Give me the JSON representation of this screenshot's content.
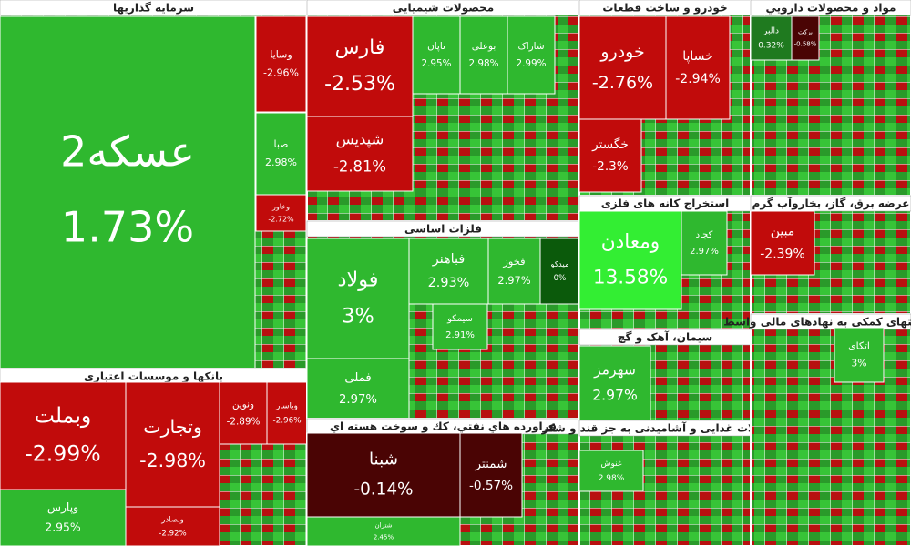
{
  "chart_data": {
    "type": "treemap",
    "sectors": [
      {
        "title": "سرمایه گذاریها",
        "tiles": [
          {
            "name": "عسکه2",
            "value": 1.73,
            "label": "1.73%"
          },
          {
            "name": "وسایا",
            "value": -2.96,
            "label": "-2.96%"
          },
          {
            "name": "صبا",
            "value": 2.98,
            "label": "2.98%"
          },
          {
            "name": "وخاور",
            "value": -2.72,
            "label": "-2.72%"
          }
        ]
      },
      {
        "title": "بانکها و موسسات اعتباری",
        "tiles": [
          {
            "name": "وبملت",
            "value": -2.99,
            "label": "-2.99%"
          },
          {
            "name": "وتجارت",
            "value": -2.98,
            "label": "-2.98%"
          },
          {
            "name": "وپارس",
            "value": 2.95,
            "label": "2.95%"
          },
          {
            "name": "وبصادر",
            "value": -2.92,
            "label": "-2.92%"
          },
          {
            "name": "ونوین",
            "value": -2.89,
            "label": "-2.89%"
          },
          {
            "name": "وپاسار",
            "value": -2.96,
            "label": "-2.96%"
          }
        ]
      },
      {
        "title": "محصولات شیمیایی",
        "tiles": [
          {
            "name": "فارس",
            "value": -2.53,
            "label": "-2.53%"
          },
          {
            "name": "شپدیس",
            "value": -2.81,
            "label": "-2.81%"
          },
          {
            "name": "تاپان",
            "value": 2.95,
            "label": "2.95%"
          },
          {
            "name": "بوعلی",
            "value": 2.98,
            "label": "2.98%"
          },
          {
            "name": "شاراک",
            "value": 2.99,
            "label": "2.99%"
          }
        ]
      },
      {
        "title": "فلزات اساسی",
        "tiles": [
          {
            "name": "فولاد",
            "value": 3,
            "label": "3%"
          },
          {
            "name": "فملی",
            "value": 2.97,
            "label": "2.97%"
          },
          {
            "name": "فباهنر",
            "value": 2.93,
            "label": "2.93%"
          },
          {
            "name": "فخوز",
            "value": 2.97,
            "label": "2.97%"
          },
          {
            "name": "میدکو",
            "value": 0,
            "label": "0%"
          },
          {
            "name": "سیمکو",
            "value": 2.91,
            "label": "2.91%"
          }
        ]
      },
      {
        "title": "فراورده هاي نفتي، كك و سوخت هسته اي",
        "tiles": [
          {
            "name": "شبنا",
            "value": -0.14,
            "label": "-0.14%"
          },
          {
            "name": "شمنتر",
            "value": -0.57,
            "label": "-0.57%"
          },
          {
            "name": "شتران",
            "value": 2.45,
            "label": "2.45%"
          }
        ]
      },
      {
        "title": "خودرو و ساخت قطعات",
        "tiles": [
          {
            "name": "خودرو",
            "value": -2.76,
            "label": "-2.76%"
          },
          {
            "name": "خساپا",
            "value": -2.94,
            "label": "-2.94%"
          },
          {
            "name": "خگستر",
            "value": -2.3,
            "label": "-2.3%"
          }
        ]
      },
      {
        "title": "مواد و محصولات دارويي",
        "tiles": [
          {
            "name": "دالبر",
            "value": 0.32,
            "label": "0.32%"
          },
          {
            "name": "بركت",
            "value": -0.58,
            "label": "-0.58%"
          }
        ]
      },
      {
        "title": "استخراج کانه های فلزی",
        "tiles": [
          {
            "name": "ومعادن",
            "value": 13.58,
            "label": "13.58%"
          },
          {
            "name": "کچاد",
            "value": 2.97,
            "label": "2.97%"
          }
        ]
      },
      {
        "title": "سیمان، آهک و گچ",
        "tiles": [
          {
            "name": "سهرمز",
            "value": 2.97,
            "label": "2.97%"
          }
        ]
      },
      {
        "title": "محصولات غذایی و آشامیدنی به جز قند و شکر",
        "tiles": [
          {
            "name": "غنوش",
            "value": 2.98,
            "label": "2.98%"
          }
        ]
      },
      {
        "title": "عرضه برق، گاز، بخاروآب گرم",
        "tiles": [
          {
            "name": "مبین",
            "value": -2.39,
            "label": "-2.39%"
          }
        ]
      },
      {
        "title": "فعالیتهای کمکی به نهادهای مالی واسط",
        "tiles": [
          {
            "name": "اتکای",
            "value": 3,
            "label": "3%"
          }
        ]
      }
    ]
  }
}
